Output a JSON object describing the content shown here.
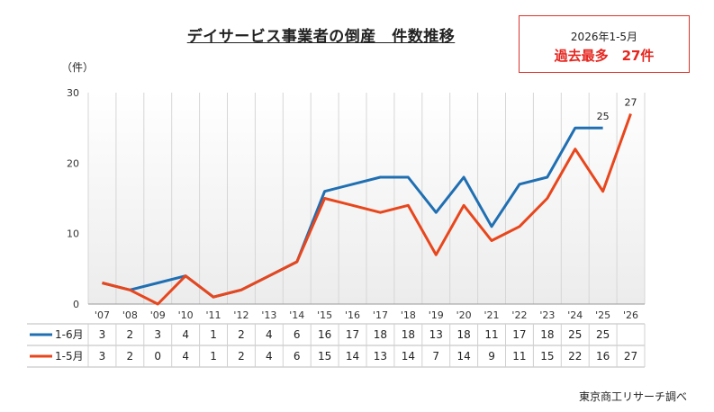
{
  "title": "デイサービス事業者の倒産　件数推移",
  "note": {
    "line1": "2026年1-5月",
    "line2": "過去最多　27件"
  },
  "unit_label": "（件）",
  "source": "東京商工リサーチ調べ",
  "chart_data": {
    "type": "line",
    "categories": [
      "'07",
      "'08",
      "'09",
      "'10",
      "'11",
      "'12",
      "'13",
      "'14",
      "'15",
      "'16",
      "'17",
      "'18",
      "'19",
      "'20",
      "'21",
      "'22",
      "'23",
      "'24",
      "'25",
      "'26"
    ],
    "series": [
      {
        "name": "1-6月",
        "color": "#1f6fb2",
        "values": [
          3,
          2,
          3,
          4,
          1,
          2,
          4,
          6,
          16,
          17,
          18,
          18,
          13,
          18,
          11,
          17,
          18,
          25,
          25,
          null
        ]
      },
      {
        "name": "1-5月",
        "color": "#e8461c",
        "values": [
          3,
          2,
          0,
          4,
          1,
          2,
          4,
          6,
          15,
          14,
          13,
          14,
          7,
          14,
          9,
          11,
          15,
          22,
          16,
          27
        ]
      }
    ],
    "ylim": [
      0,
      30
    ],
    "yticks": [
      0,
      10,
      20,
      30
    ],
    "data_labels": [
      {
        "series": 0,
        "index": 18,
        "text": "25"
      },
      {
        "series": 1,
        "index": 19,
        "text": "27"
      }
    ],
    "grid": "vertical",
    "legend": "data-table"
  }
}
